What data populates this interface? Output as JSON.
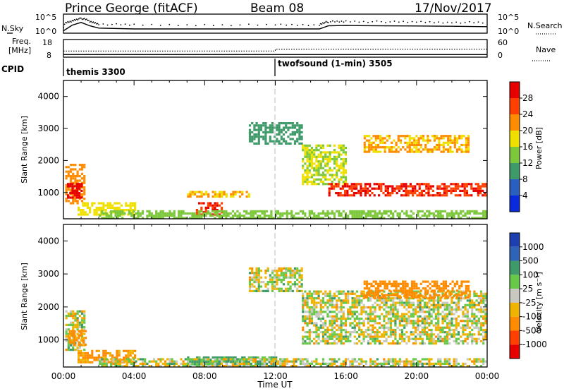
{
  "header": {
    "station": "Prince George (fitACF)",
    "beam": "Beam 08",
    "date": "17/Nov/2017"
  },
  "noise_panel": {
    "left_label": "N.Sky",
    "left_ticks": [
      "10^5",
      "10^0"
    ],
    "right_ticks": [
      "10^5",
      "10^0"
    ],
    "right_label": "N.Search"
  },
  "freq_panel": {
    "left_label_1": "Freq.",
    "left_label_2": "[MHz]",
    "left_ticks": [
      "18",
      "8"
    ],
    "right_ticks": [
      "60",
      "0"
    ],
    "right_label": "Nave"
  },
  "cpid_panel": {
    "label": "CPID",
    "program_1": "themis 3300",
    "program_2": "twofsound (1-min) 3505"
  },
  "time_axis": {
    "label": "Time UT",
    "ticks": [
      "00:00",
      "04:00",
      "08:00",
      "12:00",
      "16:00",
      "20:00",
      "00:00"
    ]
  },
  "range_axis": {
    "label": "Slant Range [km]",
    "ticks": [
      "1000",
      "2000",
      "3000",
      "4000"
    ]
  },
  "power_scale": {
    "label": "Power [dB]",
    "ticks": [
      "4",
      "8",
      "12",
      "16",
      "20",
      "24",
      "28"
    ],
    "colors": [
      "#0a2bdc",
      "#2a5fbf",
      "#3f9a6a",
      "#7cc83a",
      "#f0e000",
      "#ff8c00",
      "#ff4000",
      "#e60000"
    ]
  },
  "velocity_scale": {
    "label": "Velocity [m s⁻¹]",
    "ticks": [
      "1000",
      "500",
      "100",
      "25",
      "-25",
      "-100",
      "-500",
      "-1000"
    ],
    "colors": [
      "#1e3fb0",
      "#2f63b8",
      "#3f9a6a",
      "#67c84a",
      "#c8c8c0",
      "#f0b400",
      "#ff8c00",
      "#ff4000",
      "#e60000"
    ]
  },
  "chart_data": [
    {
      "type": "line",
      "name": "noise-sky-search",
      "x_range": [
        0,
        24
      ],
      "y_scale": "log",
      "y_range": [
        1,
        100000
      ],
      "series": [
        {
          "x": [
            0,
            0.5,
            1.0,
            1.5,
            2,
            4,
            8,
            12,
            14.5,
            15,
            16,
            18,
            20,
            22,
            24
          ],
          "values": [
            10,
            300,
            1500,
            200,
            50,
            30,
            30,
            30,
            30,
            200,
            250,
            200,
            180,
            150,
            120
          ]
        }
      ]
    },
    {
      "type": "line",
      "name": "frequency-nave",
      "x_range": [
        0,
        24
      ],
      "y_range": [
        8,
        18
      ],
      "series": [
        {
          "x": [
            0,
            24
          ],
          "values": [
            9.5,
            9.5
          ]
        },
        {
          "x": [
            0,
            12,
            12,
            24
          ],
          "values": [
            11.5,
            11.5,
            12.5,
            12.5
          ]
        }
      ]
    },
    {
      "type": "heatmap",
      "name": "power-rti",
      "x_label": "Time UT",
      "y_label": "Slant Range [km]",
      "x_range": [
        0,
        24
      ],
      "y_range": [
        180,
        4500
      ],
      "colorbar": "Power [dB]",
      "c_range": [
        0,
        32
      ],
      "regions": [
        {
          "t0": 0.1,
          "t1": 1.2,
          "r0": 700,
          "r1": 1900,
          "v": 22
        },
        {
          "t0": 0.2,
          "t1": 1.0,
          "r0": 850,
          "r1": 1300,
          "v": 30
        },
        {
          "t0": 0.8,
          "t1": 4.0,
          "r0": 300,
          "r1": 700,
          "v": 18
        },
        {
          "t0": 7.0,
          "t1": 10.5,
          "r0": 850,
          "r1": 1050,
          "v": 20
        },
        {
          "t0": 7.5,
          "t1": 9.0,
          "r0": 300,
          "r1": 700,
          "v": 28
        },
        {
          "t0": 10.5,
          "t1": 13.5,
          "r0": 2500,
          "r1": 3200,
          "v": 10
        },
        {
          "t0": 13.5,
          "t1": 16.0,
          "r0": 1300,
          "r1": 2500,
          "v": 16
        },
        {
          "t0": 15.0,
          "t1": 24.0,
          "r0": 900,
          "r1": 1300,
          "v": 28
        },
        {
          "t0": 17.0,
          "t1": 23.0,
          "r0": 2300,
          "r1": 2800,
          "v": 20
        },
        {
          "t0": 2.0,
          "t1": 24.0,
          "r0": 200,
          "r1": 450,
          "v": 14
        }
      ]
    },
    {
      "type": "heatmap",
      "name": "velocity-rti",
      "x_label": "Time UT",
      "y_label": "Slant Range [km]",
      "x_range": [
        0,
        24
      ],
      "y_range": [
        180,
        4500
      ],
      "colorbar": "Velocity [m s⁻¹]",
      "c_range": [
        -1000,
        1000
      ],
      "regions": [
        {
          "t0": 0.1,
          "t1": 1.2,
          "r0": 700,
          "r1": 1900,
          "v": 0
        },
        {
          "t0": 0.3,
          "t1": 1.3,
          "r0": 850,
          "r1": 1300,
          "v": -200
        },
        {
          "t0": 0.8,
          "t1": 4.0,
          "r0": 300,
          "r1": 700,
          "v": -150
        },
        {
          "t0": 7.0,
          "t1": 12.0,
          "r0": 200,
          "r1": 500,
          "v": 150
        },
        {
          "t0": 10.5,
          "t1": 13.5,
          "r0": 2500,
          "r1": 3200,
          "v": 0
        },
        {
          "t0": 13.5,
          "t1": 24.0,
          "r0": 900,
          "r1": 2500,
          "v": 0
        },
        {
          "t0": 17.0,
          "t1": 23.0,
          "r0": 2300,
          "r1": 2800,
          "v": -300
        },
        {
          "t0": 2.0,
          "t1": 24.0,
          "r0": 200,
          "r1": 450,
          "v": 0
        }
      ]
    }
  ]
}
